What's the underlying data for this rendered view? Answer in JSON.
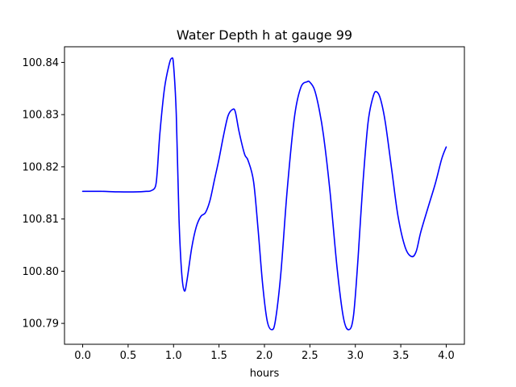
{
  "chart_data": {
    "type": "line",
    "title": "Water Depth h at gauge 99",
    "xlabel": "hours",
    "ylabel": "",
    "xlim": [
      -0.2,
      4.2
    ],
    "ylim": [
      100.786,
      100.843
    ],
    "xticks": [
      0.0,
      0.5,
      1.0,
      1.5,
      2.0,
      2.5,
      3.0,
      3.5,
      4.0
    ],
    "xtick_labels": [
      "0.0",
      "0.5",
      "1.0",
      "1.5",
      "2.0",
      "2.5",
      "3.0",
      "3.5",
      "4.0"
    ],
    "yticks": [
      100.79,
      100.8,
      100.81,
      100.82,
      100.83,
      100.84
    ],
    "ytick_labels": [
      "100.79",
      "100.80",
      "100.81",
      "100.82",
      "100.83",
      "100.84"
    ],
    "grid": false,
    "series": [
      {
        "color": "#0000ff",
        "x": [
          0.0,
          0.2,
          0.4,
          0.6,
          0.7,
          0.75,
          0.8,
          0.82,
          0.85,
          0.9,
          0.95,
          0.98,
          1.0,
          1.03,
          1.06,
          1.09,
          1.12,
          1.15,
          1.2,
          1.25,
          1.3,
          1.35,
          1.4,
          1.45,
          1.5,
          1.55,
          1.6,
          1.65,
          1.68,
          1.72,
          1.78,
          1.82,
          1.88,
          1.93,
          1.98,
          2.03,
          2.08,
          2.12,
          2.18,
          2.25,
          2.33,
          2.4,
          2.47,
          2.5,
          2.55,
          2.6,
          2.65,
          2.72,
          2.8,
          2.87,
          2.93,
          2.98,
          3.03,
          3.08,
          3.14,
          3.2,
          3.24,
          3.28,
          3.33,
          3.4,
          3.47,
          3.55,
          3.62,
          3.67,
          3.72,
          3.8,
          3.88,
          3.95,
          4.0
        ],
        "values": [
          100.8153,
          100.8153,
          100.8152,
          100.8152,
          100.8153,
          100.8154,
          100.8162,
          100.819,
          100.8265,
          100.835,
          100.8395,
          100.8408,
          100.8395,
          100.83,
          100.81,
          100.7995,
          100.7962,
          100.7985,
          100.8045,
          100.8085,
          100.8105,
          100.8112,
          100.8135,
          100.8175,
          100.8215,
          100.826,
          100.8298,
          100.831,
          100.8305,
          100.8268,
          100.8225,
          100.8212,
          100.8172,
          100.808,
          100.7975,
          100.7905,
          100.7888,
          100.7905,
          100.7995,
          100.8155,
          100.8295,
          100.8352,
          100.8363,
          100.8362,
          100.8348,
          100.8312,
          100.826,
          100.8155,
          100.8005,
          100.791,
          100.7888,
          100.7915,
          100.8025,
          100.816,
          100.8285,
          100.8337,
          100.8343,
          100.8328,
          100.8285,
          100.8195,
          100.8105,
          100.8045,
          100.8028,
          100.8038,
          100.8075,
          100.8122,
          100.8168,
          100.8215,
          100.8238
        ]
      }
    ]
  }
}
